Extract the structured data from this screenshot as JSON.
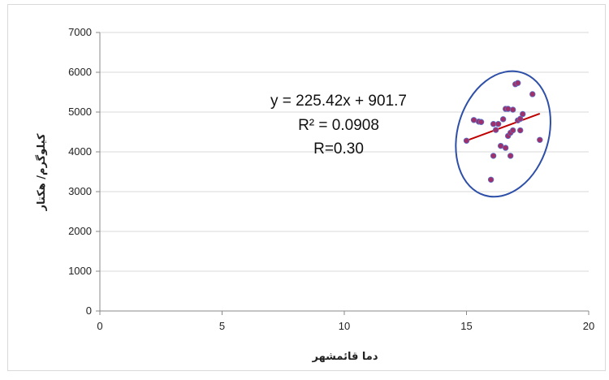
{
  "chart_data": {
    "type": "scatter",
    "title": "",
    "xlabel": "دما قائمشهر",
    "ylabel": "کیلوگرم/ هکتار",
    "xlim": [
      0,
      20
    ],
    "ylim": [
      0,
      7000
    ],
    "x_ticks": [
      0,
      5,
      10,
      15,
      20
    ],
    "y_ticks": [
      0,
      1000,
      2000,
      3000,
      4000,
      5000,
      6000,
      7000
    ],
    "grid": "horizontal",
    "legend": "none",
    "series": [
      {
        "marker_color": "#a0306a",
        "points": [
          [
            15.0,
            4280
          ],
          [
            15.3,
            4800
          ],
          [
            15.5,
            4760
          ],
          [
            15.6,
            4750
          ],
          [
            16.0,
            3300
          ],
          [
            16.1,
            3900
          ],
          [
            16.1,
            4700
          ],
          [
            16.2,
            4550
          ],
          [
            16.3,
            4700
          ],
          [
            16.4,
            4150
          ],
          [
            16.5,
            4820
          ],
          [
            16.6,
            5080
          ],
          [
            16.6,
            4100
          ],
          [
            16.7,
            5080
          ],
          [
            16.7,
            4400
          ],
          [
            16.8,
            3900
          ],
          [
            16.8,
            4480
          ],
          [
            16.9,
            4540
          ],
          [
            16.9,
            5060
          ],
          [
            17.0,
            5700
          ],
          [
            17.1,
            4790
          ],
          [
            17.1,
            5730
          ],
          [
            17.2,
            4540
          ],
          [
            17.2,
            4830
          ],
          [
            17.3,
            4950
          ],
          [
            17.7,
            5450
          ],
          [
            18.0,
            4300
          ]
        ]
      }
    ],
    "trendline": {
      "color": "#c00000",
      "x_range": [
        15.0,
        18.0
      ],
      "slope": 225.42,
      "intercept": 901.7
    },
    "annotations": {
      "equation": "y = 225.42x + 901.7",
      "r_squared": "R² = 0.0908",
      "r": "R=0.30"
    },
    "ellipse_color": "#2e4fa8"
  }
}
